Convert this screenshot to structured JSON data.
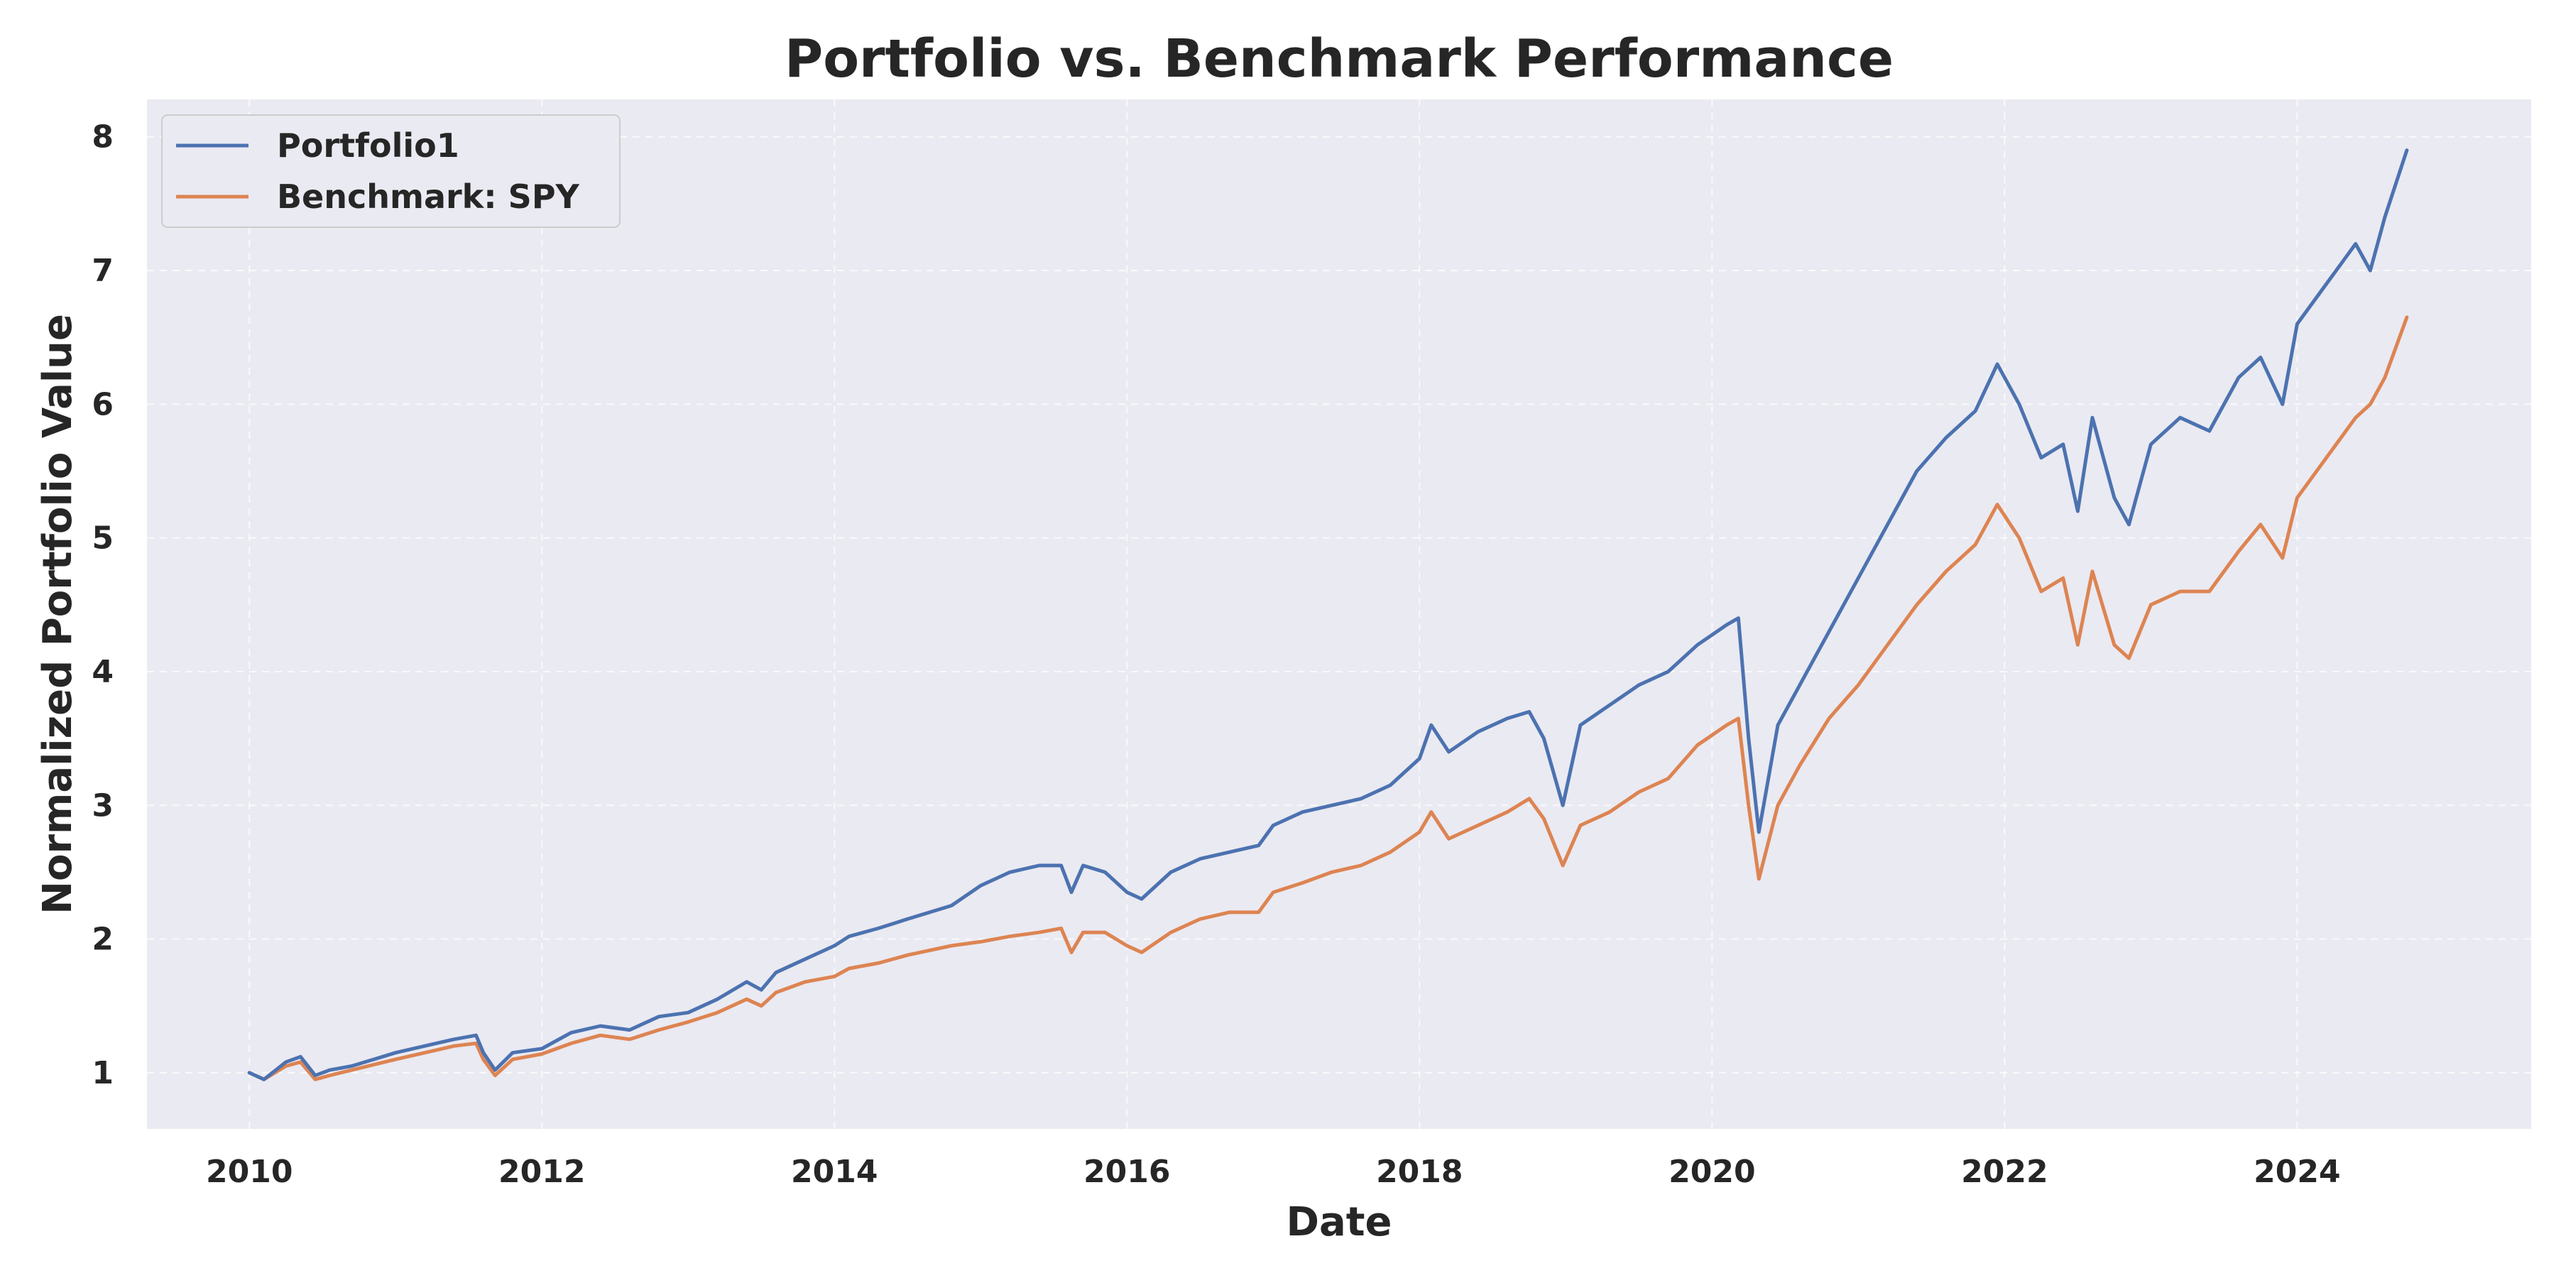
{
  "chart_data": {
    "type": "line",
    "title": "Portfolio vs. Benchmark Performance",
    "xlabel": "Date",
    "ylabel": "Normalized Portfolio Value",
    "xlim": [
      2009.3,
      2025.6
    ],
    "ylim": [
      0.58,
      8.28
    ],
    "x_ticks": [
      2010,
      2012,
      2014,
      2016,
      2018,
      2020,
      2022,
      2024
    ],
    "x_tick_labels": [
      "2010",
      "2012",
      "2014",
      "2016",
      "2018",
      "2020",
      "2022",
      "2024"
    ],
    "y_ticks": [
      1,
      2,
      3,
      4,
      5,
      6,
      7,
      8
    ],
    "y_tick_labels": [
      "1",
      "2",
      "3",
      "4",
      "5",
      "6",
      "7",
      "8"
    ],
    "grid": true,
    "legend_position": "top-left",
    "background_color": "#eaeaf2",
    "series": [
      {
        "name": "Portfolio1",
        "color": "#4c72b0",
        "x": [
          2010.0,
          2010.1,
          2010.25,
          2010.35,
          2010.45,
          2010.55,
          2010.7,
          2010.85,
          2011.0,
          2011.2,
          2011.4,
          2011.55,
          2011.6,
          2011.68,
          2011.8,
          2012.0,
          2012.2,
          2012.4,
          2012.6,
          2012.8,
          2013.0,
          2013.2,
          2013.4,
          2013.5,
          2013.6,
          2013.8,
          2014.0,
          2014.1,
          2014.3,
          2014.5,
          2014.8,
          2015.0,
          2015.2,
          2015.4,
          2015.55,
          2015.62,
          2015.7,
          2015.85,
          2016.0,
          2016.1,
          2016.3,
          2016.5,
          2016.7,
          2016.9,
          2017.0,
          2017.2,
          2017.4,
          2017.6,
          2017.8,
          2018.0,
          2018.08,
          2018.2,
          2018.4,
          2018.6,
          2018.75,
          2018.85,
          2018.98,
          2019.1,
          2019.3,
          2019.5,
          2019.7,
          2019.9,
          2020.1,
          2020.18,
          2020.25,
          2020.32,
          2020.45,
          2020.6,
          2020.8,
          2021.0,
          2021.2,
          2021.4,
          2021.6,
          2021.8,
          2021.95,
          2022.1,
          2022.25,
          2022.4,
          2022.5,
          2022.6,
          2022.75,
          2022.85,
          2023.0,
          2023.2,
          2023.4,
          2023.6,
          2023.75,
          2023.9,
          2024.0,
          2024.2,
          2024.4,
          2024.5,
          2024.6,
          2024.75
        ],
        "values": [
          1.0,
          0.95,
          1.08,
          1.12,
          0.98,
          1.02,
          1.05,
          1.1,
          1.15,
          1.2,
          1.25,
          1.28,
          1.15,
          1.02,
          1.15,
          1.18,
          1.3,
          1.35,
          1.32,
          1.42,
          1.45,
          1.55,
          1.68,
          1.62,
          1.75,
          1.85,
          1.95,
          2.02,
          2.08,
          2.15,
          2.25,
          2.4,
          2.5,
          2.55,
          2.55,
          2.35,
          2.55,
          2.5,
          2.35,
          2.3,
          2.5,
          2.6,
          2.65,
          2.7,
          2.85,
          2.95,
          3.0,
          3.05,
          3.15,
          3.35,
          3.6,
          3.4,
          3.55,
          3.65,
          3.7,
          3.5,
          3.0,
          3.6,
          3.75,
          3.9,
          4.0,
          4.2,
          4.35,
          4.4,
          3.5,
          2.8,
          3.6,
          3.9,
          4.3,
          4.7,
          5.1,
          5.5,
          5.75,
          5.95,
          6.3,
          6.0,
          5.6,
          5.7,
          5.2,
          5.9,
          5.3,
          5.1,
          5.7,
          5.9,
          5.8,
          6.2,
          6.35,
          6.0,
          6.6,
          6.9,
          7.2,
          7.0,
          7.4,
          7.9
        ]
      },
      {
        "name": "Benchmark: SPY",
        "color": "#dd8452",
        "x": [
          2010.0,
          2010.1,
          2010.25,
          2010.35,
          2010.45,
          2010.55,
          2010.7,
          2010.85,
          2011.0,
          2011.2,
          2011.4,
          2011.55,
          2011.6,
          2011.68,
          2011.8,
          2012.0,
          2012.2,
          2012.4,
          2012.6,
          2012.8,
          2013.0,
          2013.2,
          2013.4,
          2013.5,
          2013.6,
          2013.8,
          2014.0,
          2014.1,
          2014.3,
          2014.5,
          2014.8,
          2015.0,
          2015.2,
          2015.4,
          2015.55,
          2015.62,
          2015.7,
          2015.85,
          2016.0,
          2016.1,
          2016.3,
          2016.5,
          2016.7,
          2016.9,
          2017.0,
          2017.2,
          2017.4,
          2017.6,
          2017.8,
          2018.0,
          2018.08,
          2018.2,
          2018.4,
          2018.6,
          2018.75,
          2018.85,
          2018.98,
          2019.1,
          2019.3,
          2019.5,
          2019.7,
          2019.9,
          2020.1,
          2020.18,
          2020.25,
          2020.32,
          2020.45,
          2020.6,
          2020.8,
          2021.0,
          2021.2,
          2021.4,
          2021.6,
          2021.8,
          2021.95,
          2022.1,
          2022.25,
          2022.4,
          2022.5,
          2022.6,
          2022.75,
          2022.85,
          2023.0,
          2023.2,
          2023.4,
          2023.6,
          2023.75,
          2023.9,
          2024.0,
          2024.2,
          2024.4,
          2024.5,
          2024.6,
          2024.75
        ],
        "values": [
          1.0,
          0.95,
          1.05,
          1.08,
          0.95,
          0.98,
          1.02,
          1.06,
          1.1,
          1.15,
          1.2,
          1.22,
          1.1,
          0.98,
          1.1,
          1.14,
          1.22,
          1.28,
          1.25,
          1.32,
          1.38,
          1.45,
          1.55,
          1.5,
          1.6,
          1.68,
          1.72,
          1.78,
          1.82,
          1.88,
          1.95,
          1.98,
          2.02,
          2.05,
          2.08,
          1.9,
          2.05,
          2.05,
          1.95,
          1.9,
          2.05,
          2.15,
          2.2,
          2.2,
          2.35,
          2.42,
          2.5,
          2.55,
          2.65,
          2.8,
          2.95,
          2.75,
          2.85,
          2.95,
          3.05,
          2.9,
          2.55,
          2.85,
          2.95,
          3.1,
          3.2,
          3.45,
          3.6,
          3.65,
          3.0,
          2.45,
          3.0,
          3.3,
          3.65,
          3.9,
          4.2,
          4.5,
          4.75,
          4.95,
          5.25,
          5.0,
          4.6,
          4.7,
          4.2,
          4.75,
          4.2,
          4.1,
          4.5,
          4.6,
          4.6,
          4.9,
          5.1,
          4.85,
          5.3,
          5.6,
          5.9,
          6.0,
          6.2,
          6.65
        ]
      }
    ]
  }
}
